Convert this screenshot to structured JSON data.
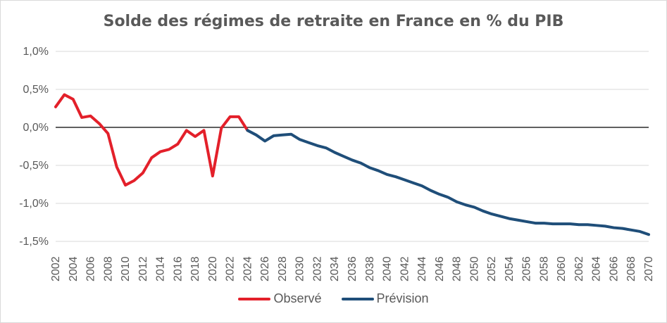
{
  "chart_data": {
    "type": "line",
    "title": "Solde des régimes de retraite en France en % du PIB",
    "xlabel": "",
    "ylabel": "",
    "ylim": [
      -1.5,
      1.0
    ],
    "xlim": [
      2002,
      2070
    ],
    "grid": true,
    "legend_position": "bottom",
    "y_ticks": [
      {
        "value": 1.0,
        "label": "1,0%"
      },
      {
        "value": 0.5,
        "label": "0,5%"
      },
      {
        "value": 0.0,
        "label": "0,0%"
      },
      {
        "value": -0.5,
        "label": "-0,5%"
      },
      {
        "value": -1.0,
        "label": "-1,0%"
      },
      {
        "value": -1.5,
        "label": "-1,5%"
      }
    ],
    "x_ticks": [
      "2002",
      "2004",
      "2006",
      "2008",
      "2010",
      "2012",
      "2014",
      "2016",
      "2018",
      "2020",
      "2022",
      "2024",
      "2026",
      "2028",
      "2030",
      "2032",
      "2034",
      "2036",
      "2038",
      "2040",
      "2042",
      "2044",
      "2046",
      "2048",
      "2050",
      "2052",
      "2054",
      "2056",
      "2058",
      "2060",
      "2062",
      "2064",
      "2066",
      "2068",
      "2070"
    ],
    "series": [
      {
        "name": "Observé",
        "color": "#e3202a",
        "points": [
          [
            2002,
            0.27
          ],
          [
            2003,
            0.43
          ],
          [
            2004,
            0.37
          ],
          [
            2005,
            0.13
          ],
          [
            2006,
            0.15
          ],
          [
            2007,
            0.05
          ],
          [
            2008,
            -0.08
          ],
          [
            2009,
            -0.52
          ],
          [
            2010,
            -0.76
          ],
          [
            2011,
            -0.7
          ],
          [
            2012,
            -0.6
          ],
          [
            2013,
            -0.4
          ],
          [
            2014,
            -0.32
          ],
          [
            2015,
            -0.29
          ],
          [
            2016,
            -0.22
          ],
          [
            2017,
            -0.04
          ],
          [
            2018,
            -0.12
          ],
          [
            2019,
            -0.04
          ],
          [
            2020,
            -0.64
          ],
          [
            2021,
            -0.01
          ],
          [
            2022,
            0.14
          ],
          [
            2023,
            0.14
          ],
          [
            2024,
            -0.04
          ]
        ]
      },
      {
        "name": "Prévision",
        "color": "#1f4e79",
        "points": [
          [
            2024,
            -0.04
          ],
          [
            2025,
            -0.1
          ],
          [
            2026,
            -0.18
          ],
          [
            2027,
            -0.11
          ],
          [
            2028,
            -0.1
          ],
          [
            2029,
            -0.09
          ],
          [
            2030,
            -0.16
          ],
          [
            2031,
            -0.2
          ],
          [
            2032,
            -0.24
          ],
          [
            2033,
            -0.27
          ],
          [
            2034,
            -0.33
          ],
          [
            2035,
            -0.38
          ],
          [
            2036,
            -0.43
          ],
          [
            2037,
            -0.47
          ],
          [
            2038,
            -0.53
          ],
          [
            2039,
            -0.57
          ],
          [
            2040,
            -0.62
          ],
          [
            2041,
            -0.65
          ],
          [
            2042,
            -0.69
          ],
          [
            2043,
            -0.73
          ],
          [
            2044,
            -0.77
          ],
          [
            2045,
            -0.83
          ],
          [
            2046,
            -0.88
          ],
          [
            2047,
            -0.92
          ],
          [
            2048,
            -0.98
          ],
          [
            2049,
            -1.02
          ],
          [
            2050,
            -1.05
          ],
          [
            2051,
            -1.1
          ],
          [
            2052,
            -1.14
          ],
          [
            2053,
            -1.17
          ],
          [
            2054,
            -1.2
          ],
          [
            2055,
            -1.22
          ],
          [
            2056,
            -1.24
          ],
          [
            2057,
            -1.26
          ],
          [
            2058,
            -1.26
          ],
          [
            2059,
            -1.27
          ],
          [
            2060,
            -1.27
          ],
          [
            2061,
            -1.27
          ],
          [
            2062,
            -1.28
          ],
          [
            2063,
            -1.28
          ],
          [
            2064,
            -1.29
          ],
          [
            2065,
            -1.3
          ],
          [
            2066,
            -1.32
          ],
          [
            2067,
            -1.33
          ],
          [
            2068,
            -1.35
          ],
          [
            2069,
            -1.37
          ],
          [
            2070,
            -1.41
          ]
        ]
      }
    ]
  }
}
